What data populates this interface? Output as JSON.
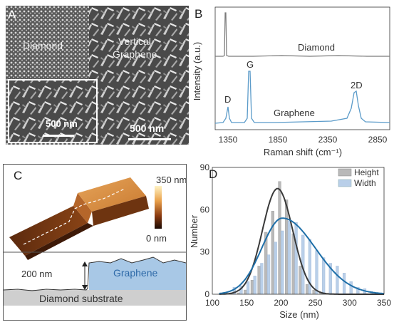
{
  "panels": {
    "A": {
      "label": "A",
      "region_left": "Diamond",
      "region_right_line1": "Vertical",
      "region_right_line2": "Graphene",
      "scale_inset": "500 nm",
      "scale_main": "500 nm"
    },
    "B": {
      "label": "B",
      "ylabel": "Intensity (a.u.)",
      "xlabel": "Raman shift (cm⁻¹)",
      "xticks": [
        "1350",
        "1850",
        "2350",
        "2850"
      ],
      "trace_diamond": "Diamond",
      "trace_graphene": "Graphene",
      "peak_D": "D",
      "peak_G": "G",
      "peak_2D": "2D",
      "colors": {
        "diamond": "#7a7a7a",
        "graphene": "#5b9bc9"
      }
    },
    "C": {
      "label": "C",
      "colorbar_max": "350 nm",
      "colorbar_min": "0 nm",
      "step_height": "200 nm",
      "graphene_label": "Graphene",
      "substrate_label": "Diamond substrate",
      "colors": {
        "graphene_fill": "#a8c8e6",
        "substrate_fill": "#cfcfcf",
        "graphene_text": "#2e6aa8"
      }
    },
    "D": {
      "label": "D",
      "ylabel": "Number",
      "xlabel": "Size (nm)",
      "legend_height": "Height",
      "legend_width": "Width",
      "colors": {
        "height": "#b9b9b9",
        "width": "#b9cfe9",
        "height_fit": "#3a3a3a",
        "width_fit": "#1f6fa8"
      }
    }
  },
  "chart_data": [
    {
      "type": "line",
      "panel": "B",
      "xlabel": "Raman shift (cm⁻¹)",
      "ylabel": "Intensity (a.u.)",
      "xlim": [
        1250,
        3000
      ],
      "xticks": [
        1350,
        1850,
        2350,
        2850
      ],
      "series": [
        {
          "name": "Diamond",
          "peaks": [
            {
              "x": 1332,
              "rel_height": 1.0
            }
          ]
        },
        {
          "name": "Graphene",
          "peaks": [
            {
              "label": "D",
              "x": 1350,
              "rel_height": 0.45
            },
            {
              "label": "G",
              "x": 1582,
              "rel_height": 1.0
            },
            {
              "label": "2D",
              "x": 2700,
              "rel_height": 0.75
            }
          ]
        }
      ]
    },
    {
      "type": "bar",
      "panel": "D",
      "xlabel": "Size (nm)",
      "ylabel": "Number",
      "xlim": [
        100,
        350
      ],
      "ylim": [
        0,
        90
      ],
      "xticks": [
        100,
        150,
        200,
        250,
        300,
        350
      ],
      "yticks": [
        0,
        30,
        60,
        90
      ],
      "legend": "top-right",
      "bin_centers": [
        130,
        140,
        150,
        160,
        170,
        180,
        190,
        200,
        210,
        220,
        230,
        240,
        250,
        260,
        270,
        280,
        290,
        300,
        310,
        320,
        330
      ],
      "series": [
        {
          "name": "Height",
          "values": [
            0,
            1,
            3,
            10,
            20,
            44,
            59,
            80,
            67,
            43,
            20,
            7,
            3,
            1,
            0,
            0,
            0,
            0,
            0,
            0,
            0
          ]
        },
        {
          "name": "Width",
          "values": [
            5,
            6,
            9,
            13,
            22,
            28,
            37,
            45,
            52,
            51,
            42,
            39,
            31,
            26,
            22,
            20,
            15,
            9,
            5,
            4,
            2
          ]
        }
      ],
      "fits": [
        {
          "series": "Height",
          "peak": 75,
          "center": 195
        },
        {
          "series": "Width",
          "peak": 54,
          "center": 202
        }
      ]
    }
  ]
}
